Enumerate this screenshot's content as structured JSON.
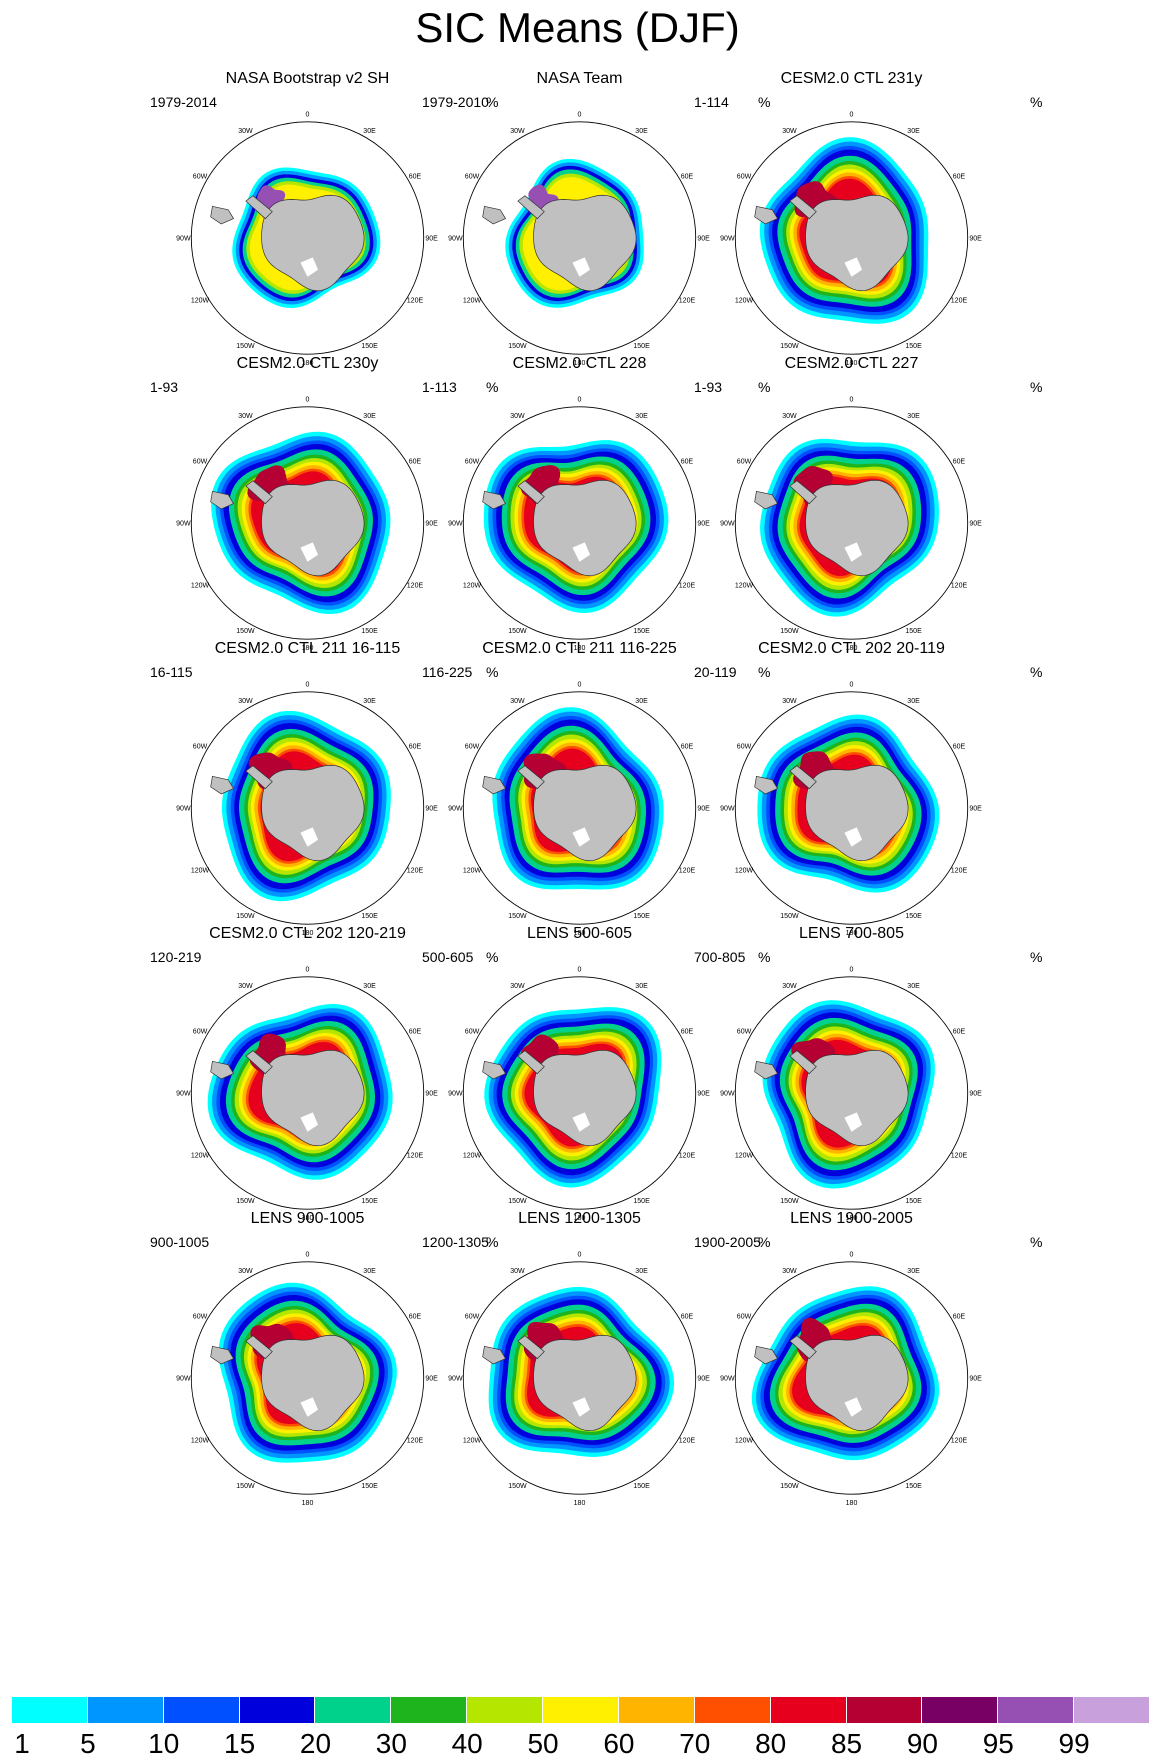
{
  "title": "SIC Means (DJF)",
  "unit": "%",
  "panels": [
    {
      "title": "NASA Bootstrap v2 SH",
      "period": "1979-2014"
    },
    {
      "title": "NASA Team",
      "period": "1979-2010"
    },
    {
      "title": "CESM2.0 CTL 231y",
      "period": "1-114"
    },
    {
      "title": "CESM2.0 CTL 230y",
      "period": "1-93"
    },
    {
      "title": "CESM2.0 CTL 228",
      "period": "1-113"
    },
    {
      "title": "CESM2.0 CTL 227",
      "period": "1-93"
    },
    {
      "title": "CESM2.0 CTL 211 16-115",
      "period": "16-115"
    },
    {
      "title": "CESM2.0 CTL 211 116-225",
      "period": "116-225"
    },
    {
      "title": "CESM2.0 CTL 202 20-119",
      "period": "20-119"
    },
    {
      "title": "CESM2.0 CTL 202 120-219",
      "period": "120-219"
    },
    {
      "title": "LENS 500-605",
      "period": "500-605"
    },
    {
      "title": "LENS 700-805",
      "period": "700-805"
    },
    {
      "title": "LENS 900-1005",
      "period": "900-1005"
    },
    {
      "title": "LENS 1200-1305",
      "period": "1200-1305"
    },
    {
      "title": "LENS 1900-2005",
      "period": "1900-2005"
    }
  ],
  "longitude_labels": [
    "0",
    "30E",
    "60E",
    "90E",
    "120E",
    "150E",
    "180",
    "150W",
    "120W",
    "90W",
    "60W",
    "30W"
  ],
  "colorbar": {
    "colors": [
      "#00ffff",
      "#0096ff",
      "#0050ff",
      "#0000dc",
      "#00d28c",
      "#1eb41e",
      "#b4e600",
      "#fff000",
      "#ffb400",
      "#ff5000",
      "#e6001e",
      "#b40032",
      "#780064",
      "#9650b4",
      "#c8a0dc"
    ],
    "tick_labels": [
      "1",
      "5",
      "10",
      "15",
      "20",
      "30",
      "40",
      "50",
      "60",
      "70",
      "80",
      "85",
      "90",
      "95",
      "99"
    ]
  }
}
